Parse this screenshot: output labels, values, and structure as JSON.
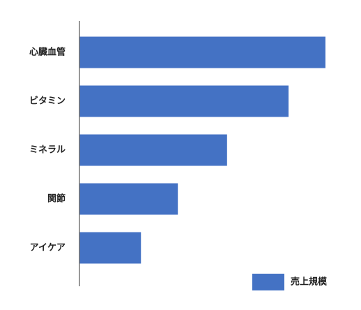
{
  "chart_data": {
    "type": "bar",
    "orientation": "horizontal",
    "categories": [
      "心臓血管",
      "ビタミン",
      "ミネラル",
      "関節",
      "アイケア"
    ],
    "series": [
      {
        "name": "売上規模",
        "values": [
          100,
          85,
          60,
          40,
          25
        ],
        "color": "#4472C4"
      }
    ],
    "xlim": [
      0,
      100
    ],
    "grid": false,
    "legend": "bottom-right"
  }
}
